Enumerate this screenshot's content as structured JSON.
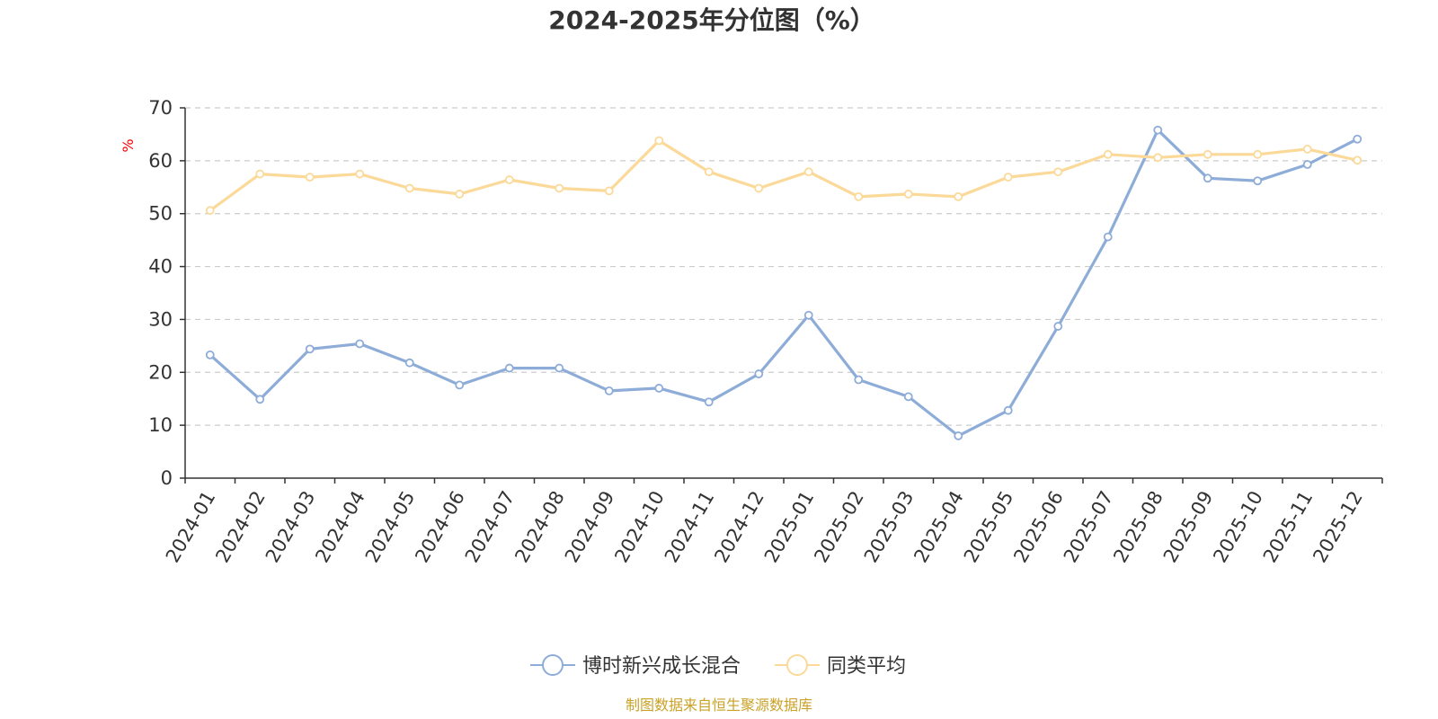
{
  "chart_data": {
    "type": "line",
    "title": "2024-2025年分位图（%）",
    "ylabel": "%",
    "ylim": [
      0,
      70
    ],
    "yticks": [
      0,
      10,
      20,
      30,
      40,
      50,
      60,
      70
    ],
    "grid": true,
    "legend_position": "bottom",
    "categories": [
      "2024-01",
      "2024-02",
      "2024-03",
      "2024-04",
      "2024-05",
      "2024-06",
      "2024-07",
      "2024-08",
      "2024-09",
      "2024-10",
      "2024-11",
      "2024-12",
      "2025-01",
      "2025-02",
      "2025-03",
      "2025-04",
      "2025-05",
      "2025-06",
      "2025-07",
      "2025-08",
      "2025-09",
      "2025-10",
      "2025-11",
      "2025-12"
    ],
    "series": [
      {
        "name": "博时新兴成长混合",
        "color": "#8eacd8",
        "values": [
          23.3,
          14.9,
          24.4,
          25.4,
          21.8,
          17.6,
          20.8,
          20.8,
          16.5,
          17.0,
          14.4,
          19.7,
          30.8,
          18.6,
          15.4,
          8.0,
          12.8,
          28.7,
          45.6,
          65.8,
          56.7,
          56.2,
          59.3,
          64.1
        ]
      },
      {
        "name": "同类平均",
        "color": "#fbd999",
        "values": [
          50.6,
          57.5,
          56.9,
          57.5,
          54.8,
          53.7,
          56.4,
          54.8,
          54.3,
          63.8,
          57.9,
          54.8,
          57.9,
          53.2,
          53.7,
          53.2,
          56.9,
          57.9,
          61.2,
          60.6,
          61.2,
          61.2,
          62.2,
          60.1
        ]
      }
    ]
  },
  "source_text": "制图数据来自恒生聚源数据库",
  "colors": {
    "axis": "#333333",
    "grid": "#cccccc",
    "unit": "#ff0000",
    "source": "#c9a227"
  }
}
